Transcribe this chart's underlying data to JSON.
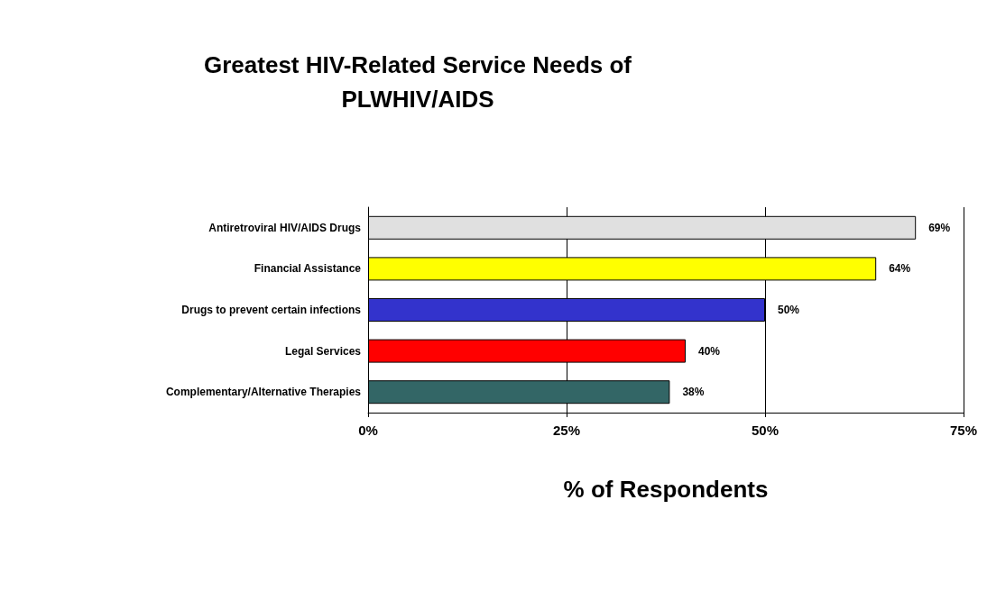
{
  "chart_data": {
    "type": "bar",
    "orientation": "horizontal",
    "title": "Greatest HIV-Related Service Needs of\nPLWHIV/AIDS",
    "xlabel": "% of Respondents",
    "categories": [
      "Antiretroviral HIV/AIDS Drugs",
      "Financial Assistance",
      "Drugs to prevent certain infections",
      "Legal Services",
      "Complementary/Alternative Therapies"
    ],
    "values": [
      69,
      64,
      50,
      40,
      38
    ],
    "value_labels": [
      "69%",
      "64%",
      "50%",
      "40%",
      "38%"
    ],
    "colors": [
      "#e0e0e0",
      "#ffff00",
      "#3333cc",
      "#ff0000",
      "#336666"
    ],
    "xlim": [
      0,
      75
    ],
    "xticks": [
      {
        "value": 0,
        "label": "0%"
      },
      {
        "value": 25,
        "label": "25%"
      },
      {
        "value": 50,
        "label": "50%"
      },
      {
        "value": 75,
        "label": "75%"
      }
    ],
    "grid": "x"
  }
}
